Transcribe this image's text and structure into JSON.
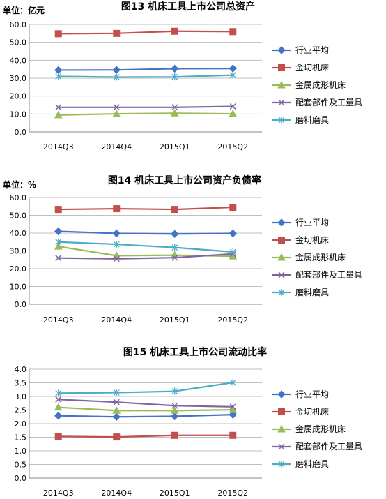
{
  "chart_data": [
    {
      "type": "line",
      "title": "图13 机床工具上市公司总资产",
      "unit_label": "单位：亿元",
      "categories": [
        "2014Q3",
        "2014Q4",
        "2015Q1",
        "2015Q2"
      ],
      "ylim": [
        0,
        60
      ],
      "yticks": [
        "0.0",
        "10.0",
        "20.0",
        "30.0",
        "40.0",
        "50.0",
        "60.0"
      ],
      "grid": true,
      "legend_position": "right",
      "series": [
        {
          "name": "行业平均",
          "values": [
            34.5,
            34.6,
            35.3,
            35.4
          ],
          "color": "#4472C4",
          "marker": "diamond"
        },
        {
          "name": "金切机床",
          "values": [
            54.8,
            55.0,
            56.2,
            56.0
          ],
          "color": "#C0504D",
          "marker": "square"
        },
        {
          "name": "金属成形机床",
          "values": [
            9.4,
            10.1,
            10.4,
            10.1
          ],
          "color": "#9BBB59",
          "marker": "triangle"
        },
        {
          "name": "配套部件及工量具",
          "values": [
            13.7,
            13.7,
            13.7,
            14.2
          ],
          "color": "#8064A2",
          "marker": "x"
        },
        {
          "name": "磨料磨具",
          "values": [
            31.0,
            30.6,
            30.7,
            31.7
          ],
          "color": "#4BACC6",
          "marker": "star"
        }
      ]
    },
    {
      "type": "line",
      "title": "图14 机床工具上市公司资产负债率",
      "unit_label": "单位：%",
      "categories": [
        "2014Q3",
        "2014Q4",
        "2015Q1",
        "2015Q2"
      ],
      "ylim": [
        0,
        60
      ],
      "yticks": [
        "0.0",
        "10.0",
        "20.0",
        "30.0",
        "40.0",
        "50.0",
        "60.0"
      ],
      "grid": true,
      "legend_position": "right",
      "series": [
        {
          "name": "行业平均",
          "values": [
            41.0,
            39.8,
            39.5,
            39.8
          ],
          "color": "#4472C4",
          "marker": "diamond"
        },
        {
          "name": "金切机床",
          "values": [
            53.3,
            53.7,
            53.3,
            54.5
          ],
          "color": "#C0504D",
          "marker": "square"
        },
        {
          "name": "金属成形机床",
          "values": [
            32.5,
            27.3,
            27.6,
            27.0
          ],
          "color": "#9BBB59",
          "marker": "triangle"
        },
        {
          "name": "配套部件及工量具",
          "values": [
            26.0,
            25.6,
            26.2,
            28.3
          ],
          "color": "#8064A2",
          "marker": "x"
        },
        {
          "name": "磨料磨具",
          "values": [
            35.0,
            33.7,
            31.9,
            29.4
          ],
          "color": "#4BACC6",
          "marker": "star"
        }
      ]
    },
    {
      "type": "line",
      "title": "图15 机床工具上市公司流动比率",
      "unit_label": "",
      "categories": [
        "2014Q3",
        "2014Q4",
        "2015Q1",
        "2015Q2"
      ],
      "ylim": [
        0,
        4
      ],
      "yticks": [
        "0.0",
        "0.5",
        "1.0",
        "1.5",
        "2.0",
        "2.5",
        "3.0",
        "3.5",
        "4.0"
      ],
      "grid": true,
      "legend_position": "right",
      "series": [
        {
          "name": "行业平均",
          "values": [
            2.29,
            2.25,
            2.27,
            2.33
          ],
          "color": "#4472C4",
          "marker": "diamond"
        },
        {
          "name": "金切机床",
          "values": [
            1.53,
            1.51,
            1.57,
            1.57
          ],
          "color": "#C0504D",
          "marker": "square"
        },
        {
          "name": "金属成形机床",
          "values": [
            2.6,
            2.48,
            2.48,
            2.51
          ],
          "color": "#9BBB59",
          "marker": "triangle"
        },
        {
          "name": "配套部件及工量具",
          "values": [
            2.89,
            2.79,
            2.66,
            2.62
          ],
          "color": "#8064A2",
          "marker": "x"
        },
        {
          "name": "磨料磨具",
          "values": [
            3.12,
            3.14,
            3.19,
            3.51
          ],
          "color": "#4BACC6",
          "marker": "star"
        }
      ]
    }
  ]
}
